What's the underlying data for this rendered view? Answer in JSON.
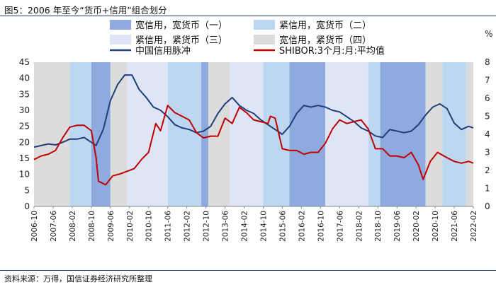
{
  "title": "图5：2006 年至今“货币+信用”组合划分",
  "source": "资料来源：万得，国信证券经济研究所整理",
  "chart_data": {
    "type": "line",
    "title": "2006 年至今“货币+信用”组合划分",
    "xlabel": "",
    "ylabel_left": "",
    "ylabel_right": "%",
    "ylim_left": [
      0,
      45
    ],
    "ylim_right": [
      0,
      8
    ],
    "yticks_left": [
      "0",
      "5",
      "10",
      "15",
      "20",
      "25",
      "30",
      "35",
      "40",
      "45"
    ],
    "yticks_right": [
      "0",
      "1",
      "2",
      "3",
      "4",
      "5",
      "6",
      "7",
      "8"
    ],
    "x_start": "2006-10",
    "x_end": "2022-02",
    "x_ticks": [
      "2006-10",
      "2007-06",
      "2008-02",
      "2008-10",
      "2009-06",
      "2010-02",
      "2010-10",
      "2011-06",
      "2012-02",
      "2012-10",
      "2013-06",
      "2014-02",
      "2014-10",
      "2015-06",
      "2016-02",
      "2016-10",
      "2017-06",
      "2018-02",
      "2018-10",
      "2019-06",
      "2020-02",
      "2020-10",
      "2021-06",
      "2022-02"
    ],
    "regime_legend": [
      {
        "key": "r1",
        "label": "宽信用，宽货币（一）",
        "color": "#8eaadf"
      },
      {
        "key": "r2",
        "label": "紧信用，宽货币（二）",
        "color": "#bcd7ef"
      },
      {
        "key": "r3",
        "label": "紧信用，紧货币（三）",
        "color": "#dde5f6"
      },
      {
        "key": "r4",
        "label": "宽信用，紧货币（四）",
        "color": "#dcdcdc"
      }
    ],
    "regimes": [
      {
        "start": "2006-10",
        "end": "2008-01",
        "type": "r4"
      },
      {
        "start": "2008-01",
        "end": "2008-10",
        "type": "r2"
      },
      {
        "start": "2008-10",
        "end": "2009-06",
        "type": "r1"
      },
      {
        "start": "2009-06",
        "end": "2010-01",
        "type": "r4"
      },
      {
        "start": "2010-01",
        "end": "2011-06",
        "type": "r3"
      },
      {
        "start": "2011-06",
        "end": "2012-08",
        "type": "r2"
      },
      {
        "start": "2012-08",
        "end": "2012-11",
        "type": "r1"
      },
      {
        "start": "2012-11",
        "end": "2013-08",
        "type": "r4"
      },
      {
        "start": "2013-08",
        "end": "2014-10",
        "type": "r3"
      },
      {
        "start": "2014-10",
        "end": "2015-09",
        "type": "r2"
      },
      {
        "start": "2015-09",
        "end": "2016-12",
        "type": "r1"
      },
      {
        "start": "2016-12",
        "end": "2018-06",
        "type": "r3"
      },
      {
        "start": "2018-06",
        "end": "2018-11",
        "type": "r2"
      },
      {
        "start": "2018-11",
        "end": "2020-06",
        "type": "r1"
      },
      {
        "start": "2020-06",
        "end": "2021-01",
        "type": "r4"
      },
      {
        "start": "2021-01",
        "end": "2021-11",
        "type": "r2"
      },
      {
        "start": "2021-11",
        "end": "2022-02",
        "type": "r4"
      }
    ],
    "series": [
      {
        "name": "中国信用脉冲",
        "axis": "left",
        "color": "#1f3f7a",
        "points": [
          [
            "2006-10",
            18.5
          ],
          [
            "2007-01",
            19.0
          ],
          [
            "2007-04",
            19.5
          ],
          [
            "2007-07",
            19.2
          ],
          [
            "2007-10",
            20.0
          ],
          [
            "2008-01",
            21.0
          ],
          [
            "2008-04",
            21.0
          ],
          [
            "2008-07",
            21.5
          ],
          [
            "2008-10",
            20.0
          ],
          [
            "2008-12",
            19.0
          ],
          [
            "2009-03",
            24.0
          ],
          [
            "2009-06",
            33.0
          ],
          [
            "2009-09",
            38.0
          ],
          [
            "2009-12",
            41.0
          ],
          [
            "2010-03",
            41.0
          ],
          [
            "2010-06",
            36.5
          ],
          [
            "2010-09",
            34.0
          ],
          [
            "2010-12",
            31.0
          ],
          [
            "2011-03",
            30.0
          ],
          [
            "2011-06",
            28.0
          ],
          [
            "2011-09",
            25.5
          ],
          [
            "2011-12",
            24.5
          ],
          [
            "2012-03",
            24.0
          ],
          [
            "2012-06",
            23.0
          ],
          [
            "2012-09",
            23.5
          ],
          [
            "2012-12",
            25.0
          ],
          [
            "2013-03",
            29.0
          ],
          [
            "2013-06",
            32.0
          ],
          [
            "2013-09",
            34.0
          ],
          [
            "2013-12",
            31.5
          ],
          [
            "2014-03",
            30.0
          ],
          [
            "2014-06",
            29.0
          ],
          [
            "2014-09",
            27.0
          ],
          [
            "2014-12",
            25.5
          ],
          [
            "2015-03",
            24.0
          ],
          [
            "2015-06",
            22.5
          ],
          [
            "2015-09",
            25.0
          ],
          [
            "2015-12",
            29.0
          ],
          [
            "2016-03",
            31.5
          ],
          [
            "2016-06",
            31.0
          ],
          [
            "2016-09",
            31.5
          ],
          [
            "2016-12",
            31.0
          ],
          [
            "2017-03",
            30.0
          ],
          [
            "2017-06",
            29.5
          ],
          [
            "2017-09",
            28.0
          ],
          [
            "2017-12",
            26.5
          ],
          [
            "2018-03",
            24.5
          ],
          [
            "2018-06",
            23.5
          ],
          [
            "2018-09",
            22.0
          ],
          [
            "2018-12",
            21.5
          ],
          [
            "2019-03",
            24.0
          ],
          [
            "2019-06",
            23.5
          ],
          [
            "2019-09",
            23.0
          ],
          [
            "2019-12",
            23.5
          ],
          [
            "2020-03",
            25.5
          ],
          [
            "2020-06",
            28.5
          ],
          [
            "2020-09",
            31.0
          ],
          [
            "2020-12",
            32.0
          ],
          [
            "2021-03",
            30.5
          ],
          [
            "2021-06",
            26.0
          ],
          [
            "2021-09",
            24.0
          ],
          [
            "2021-12",
            25.0
          ],
          [
            "2022-02",
            24.5
          ]
        ]
      },
      {
        "name": "SHIBOR:3个月:月:平均值",
        "axis": "right",
        "color": "#c00000",
        "points": [
          [
            "2006-10",
            2.6
          ],
          [
            "2007-01",
            2.8
          ],
          [
            "2007-04",
            2.9
          ],
          [
            "2007-07",
            3.1
          ],
          [
            "2007-10",
            3.8
          ],
          [
            "2008-01",
            4.4
          ],
          [
            "2008-04",
            4.5
          ],
          [
            "2008-07",
            4.5
          ],
          [
            "2008-10",
            4.2
          ],
          [
            "2008-12",
            2.7
          ],
          [
            "2009-01",
            1.4
          ],
          [
            "2009-04",
            1.2
          ],
          [
            "2009-07",
            1.7
          ],
          [
            "2009-10",
            1.8
          ],
          [
            "2010-01",
            1.95
          ],
          [
            "2010-04",
            2.1
          ],
          [
            "2010-07",
            2.6
          ],
          [
            "2010-10",
            3.0
          ],
          [
            "2011-01",
            4.6
          ],
          [
            "2011-03",
            4.2
          ],
          [
            "2011-06",
            5.6
          ],
          [
            "2011-09",
            5.2
          ],
          [
            "2011-12",
            5.0
          ],
          [
            "2012-03",
            4.8
          ],
          [
            "2012-06",
            4.1
          ],
          [
            "2012-09",
            3.8
          ],
          [
            "2012-12",
            3.9
          ],
          [
            "2013-03",
            3.9
          ],
          [
            "2013-06",
            4.9
          ],
          [
            "2013-09",
            4.6
          ],
          [
            "2013-12",
            5.5
          ],
          [
            "2014-03",
            5.2
          ],
          [
            "2014-06",
            4.8
          ],
          [
            "2014-09",
            4.7
          ],
          [
            "2014-12",
            4.6
          ],
          [
            "2015-01",
            5.0
          ],
          [
            "2015-03",
            4.9
          ],
          [
            "2015-06",
            3.2
          ],
          [
            "2015-09",
            3.1
          ],
          [
            "2015-12",
            3.1
          ],
          [
            "2016-03",
            2.9
          ],
          [
            "2016-06",
            3.0
          ],
          [
            "2016-09",
            3.0
          ],
          [
            "2016-12",
            3.5
          ],
          [
            "2017-03",
            4.3
          ],
          [
            "2017-06",
            4.8
          ],
          [
            "2017-09",
            4.6
          ],
          [
            "2017-12",
            4.7
          ],
          [
            "2018-03",
            4.8
          ],
          [
            "2018-06",
            4.3
          ],
          [
            "2018-09",
            3.2
          ],
          [
            "2018-12",
            3.2
          ],
          [
            "2019-03",
            2.8
          ],
          [
            "2019-06",
            2.8
          ],
          [
            "2019-09",
            2.7
          ],
          [
            "2019-12",
            3.0
          ],
          [
            "2020-03",
            2.3
          ],
          [
            "2020-05",
            1.5
          ],
          [
            "2020-08",
            2.5
          ],
          [
            "2020-11",
            3.0
          ],
          [
            "2021-03",
            2.7
          ],
          [
            "2021-06",
            2.5
          ],
          [
            "2021-09",
            2.4
          ],
          [
            "2021-12",
            2.5
          ],
          [
            "2022-02",
            2.4
          ]
        ]
      }
    ]
  }
}
